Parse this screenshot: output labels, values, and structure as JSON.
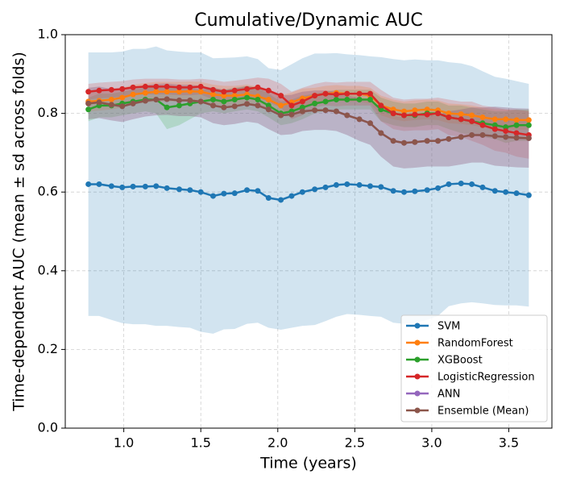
{
  "chart_data": {
    "type": "line",
    "title": "Cumulative/Dynamic AUC",
    "xlabel": "Time (years)",
    "ylabel": "Time-dependent AUC (mean ± sd across folds)",
    "x": [
      0.77,
      0.84,
      0.92,
      0.99,
      1.06,
      1.14,
      1.21,
      1.28,
      1.36,
      1.43,
      1.5,
      1.58,
      1.65,
      1.72,
      1.8,
      1.87,
      1.94,
      2.02,
      2.09,
      2.16,
      2.24,
      2.31,
      2.38,
      2.45,
      2.53,
      2.6,
      2.67,
      2.75,
      2.82,
      2.89,
      2.97,
      3.04,
      3.11,
      3.19,
      3.26,
      3.33,
      3.41,
      3.48,
      3.55,
      3.63
    ],
    "series": [
      {
        "name": "SVM",
        "color": "#1f77b4",
        "values": [
          0.62,
          0.62,
          0.615,
          0.612,
          0.614,
          0.614,
          0.615,
          0.61,
          0.607,
          0.605,
          0.6,
          0.59,
          0.596,
          0.597,
          0.605,
          0.603,
          0.585,
          0.58,
          0.59,
          0.6,
          0.607,
          0.612,
          0.618,
          0.62,
          0.618,
          0.615,
          0.613,
          0.603,
          0.6,
          0.602,
          0.605,
          0.61,
          0.62,
          0.622,
          0.62,
          0.612,
          0.603,
          0.6,
          0.597,
          0.592
        ],
        "sd": [
          0.335,
          0.335,
          0.34,
          0.345,
          0.35,
          0.35,
          0.355,
          0.35,
          0.35,
          0.35,
          0.355,
          0.35,
          0.345,
          0.345,
          0.34,
          0.335,
          0.33,
          0.33,
          0.335,
          0.34,
          0.345,
          0.34,
          0.335,
          0.33,
          0.33,
          0.33,
          0.33,
          0.335,
          0.335,
          0.335,
          0.33,
          0.325,
          0.31,
          0.305,
          0.3,
          0.295,
          0.29,
          0.288,
          0.285,
          0.283
        ]
      },
      {
        "name": "RandomForest",
        "color": "#ff7f0e",
        "values": [
          0.83,
          0.832,
          0.835,
          0.84,
          0.848,
          0.852,
          0.855,
          0.855,
          0.855,
          0.856,
          0.855,
          0.848,
          0.845,
          0.845,
          0.848,
          0.843,
          0.835,
          0.82,
          0.828,
          0.838,
          0.845,
          0.85,
          0.852,
          0.85,
          0.85,
          0.845,
          0.82,
          0.81,
          0.805,
          0.808,
          0.81,
          0.808,
          0.8,
          0.798,
          0.795,
          0.79,
          0.785,
          0.785,
          0.783,
          0.783
        ],
        "sd": [
          0.025,
          0.025,
          0.025,
          0.025,
          0.025,
          0.025,
          0.025,
          0.025,
          0.025,
          0.025,
          0.025,
          0.025,
          0.025,
          0.025,
          0.025,
          0.025,
          0.025,
          0.025,
          0.025,
          0.025,
          0.02,
          0.02,
          0.02,
          0.02,
          0.02,
          0.02,
          0.025,
          0.025,
          0.025,
          0.025,
          0.025,
          0.025,
          0.025,
          0.025,
          0.025,
          0.025,
          0.025,
          0.025,
          0.025,
          0.025
        ]
      },
      {
        "name": "XGBoost",
        "color": "#2ca02c",
        "values": [
          0.81,
          0.82,
          0.82,
          0.825,
          0.83,
          0.835,
          0.835,
          0.815,
          0.82,
          0.825,
          0.83,
          0.835,
          0.83,
          0.835,
          0.84,
          0.835,
          0.82,
          0.8,
          0.805,
          0.815,
          0.825,
          0.83,
          0.835,
          0.835,
          0.835,
          0.835,
          0.81,
          0.8,
          0.795,
          0.795,
          0.8,
          0.8,
          0.79,
          0.785,
          0.78,
          0.775,
          0.77,
          0.765,
          0.77,
          0.77
        ],
        "sd": [
          0.03,
          0.03,
          0.03,
          0.03,
          0.03,
          0.03,
          0.035,
          0.055,
          0.05,
          0.04,
          0.03,
          0.03,
          0.03,
          0.03,
          0.03,
          0.03,
          0.03,
          0.03,
          0.03,
          0.03,
          0.025,
          0.025,
          0.025,
          0.025,
          0.025,
          0.025,
          0.03,
          0.03,
          0.03,
          0.03,
          0.03,
          0.03,
          0.03,
          0.035,
          0.035,
          0.035,
          0.035,
          0.04,
          0.04,
          0.04
        ]
      },
      {
        "name": "LogisticRegression",
        "color": "#d62728",
        "values": [
          0.855,
          0.858,
          0.86,
          0.862,
          0.866,
          0.868,
          0.868,
          0.868,
          0.866,
          0.866,
          0.868,
          0.86,
          0.855,
          0.858,
          0.862,
          0.866,
          0.858,
          0.845,
          0.82,
          0.83,
          0.845,
          0.85,
          0.848,
          0.85,
          0.85,
          0.85,
          0.82,
          0.8,
          0.795,
          0.797,
          0.797,
          0.8,
          0.79,
          0.785,
          0.78,
          0.77,
          0.76,
          0.755,
          0.75,
          0.745
        ],
        "sd": [
          0.02,
          0.02,
          0.02,
          0.02,
          0.02,
          0.02,
          0.02,
          0.02,
          0.02,
          0.02,
          0.02,
          0.025,
          0.025,
          0.025,
          0.025,
          0.025,
          0.03,
          0.03,
          0.035,
          0.035,
          0.03,
          0.03,
          0.03,
          0.03,
          0.03,
          0.03,
          0.04,
          0.04,
          0.04,
          0.04,
          0.04,
          0.04,
          0.045,
          0.045,
          0.05,
          0.05,
          0.055,
          0.055,
          0.06,
          0.06
        ]
      },
      {
        "name": "ANN",
        "color": "#9467bd",
        "values": [
          0.825,
          0.828,
          0.822,
          0.818,
          0.825,
          0.832,
          0.835,
          0.836,
          0.833,
          0.833,
          0.83,
          0.82,
          0.815,
          0.818,
          0.824,
          0.82,
          0.81,
          0.795,
          0.797,
          0.805,
          0.808,
          0.808,
          0.805,
          0.795,
          0.785,
          0.775,
          0.75,
          0.73,
          0.725,
          0.727,
          0.73,
          0.73,
          0.735,
          0.74,
          0.745,
          0.745,
          0.742,
          0.74,
          0.738,
          0.737
        ],
        "sd": [
          0.04,
          0.04,
          0.04,
          0.04,
          0.04,
          0.04,
          0.04,
          0.04,
          0.04,
          0.04,
          0.04,
          0.045,
          0.045,
          0.045,
          0.045,
          0.045,
          0.05,
          0.05,
          0.05,
          0.05,
          0.05,
          0.05,
          0.05,
          0.05,
          0.055,
          0.055,
          0.06,
          0.065,
          0.065,
          0.065,
          0.065,
          0.065,
          0.07,
          0.07,
          0.07,
          0.07,
          0.075,
          0.075,
          0.075,
          0.075
        ]
      },
      {
        "name": "Ensemble (Mean)",
        "color": "#8c564b",
        "values": [
          0.825,
          0.828,
          0.822,
          0.818,
          0.825,
          0.832,
          0.835,
          0.836,
          0.833,
          0.833,
          0.83,
          0.82,
          0.815,
          0.818,
          0.824,
          0.82,
          0.81,
          0.795,
          0.797,
          0.805,
          0.808,
          0.808,
          0.805,
          0.795,
          0.785,
          0.775,
          0.75,
          0.73,
          0.725,
          0.727,
          0.73,
          0.73,
          0.735,
          0.74,
          0.745,
          0.745,
          0.742,
          0.74,
          0.738,
          0.737
        ],
        "sd": [
          0.04,
          0.04,
          0.04,
          0.04,
          0.04,
          0.04,
          0.04,
          0.04,
          0.04,
          0.04,
          0.04,
          0.045,
          0.045,
          0.045,
          0.045,
          0.045,
          0.05,
          0.05,
          0.05,
          0.05,
          0.05,
          0.05,
          0.05,
          0.05,
          0.055,
          0.055,
          0.06,
          0.065,
          0.065,
          0.065,
          0.065,
          0.065,
          0.07,
          0.07,
          0.07,
          0.07,
          0.075,
          0.075,
          0.075,
          0.075
        ]
      }
    ],
    "xlim": [
      0.62,
      3.78
    ],
    "ylim": [
      0,
      1
    ],
    "xticks": [
      {
        "value": 1,
        "label": "1.0"
      },
      1.5,
      {
        "value": 2,
        "label": "2.0"
      },
      2.5,
      {
        "value": 3,
        "label": "3.0"
      },
      3.5
    ],
    "yticks": [
      {
        "value": 0,
        "label": "0.0"
      },
      0.2,
      0.4,
      0.6,
      0.8,
      {
        "value": 1,
        "label": "1.0"
      }
    ],
    "grid": true,
    "legend": "lower right"
  }
}
